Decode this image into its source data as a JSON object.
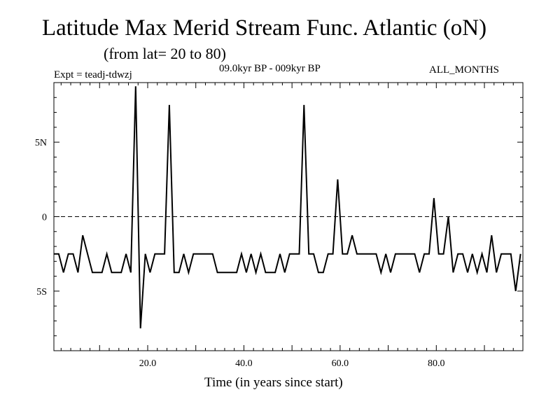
{
  "header": {
    "title": "Latitude Max Merid Stream Func. Atlantic (oN)",
    "subtitle": "(from lat= 20 to 80)",
    "experiment": "Expt = teadj-tdwzj",
    "period": "09.0kyr BP - 009kyr BP",
    "months": "ALL_MONTHS"
  },
  "chart_data": {
    "type": "line",
    "title": "Latitude Max Merid Stream Func. Atlantic (oN)",
    "xlabel": "Time (in years since start)",
    "ylabel": "",
    "xlim": [
      0.5,
      98
    ],
    "ylim": [
      -9,
      9
    ],
    "x_ticks": [
      {
        "value": 20,
        "label": "20.0"
      },
      {
        "value": 40,
        "label": "40.0"
      },
      {
        "value": 60,
        "label": "60.0"
      },
      {
        "value": 80,
        "label": "80.0"
      }
    ],
    "y_ticks": [
      {
        "value": 5,
        "label": "5N"
      },
      {
        "value": 0,
        "label": "0"
      },
      {
        "value": -5,
        "label": "5S"
      }
    ],
    "zero_line": {
      "value": 0,
      "style": "dashed"
    },
    "series": [
      {
        "name": "latitude_max",
        "x": [
          0.5,
          1.5,
          2.5,
          3.5,
          4.5,
          5.5,
          6.5,
          7.5,
          8.5,
          9.5,
          10.5,
          11.5,
          12.5,
          13.5,
          14.5,
          15.5,
          16.5,
          17.5,
          18.5,
          19.5,
          20.5,
          21.5,
          22.5,
          23.5,
          24.5,
          25.5,
          26.5,
          27.5,
          28.5,
          29.5,
          30.5,
          31.5,
          32.5,
          33.5,
          34.5,
          35.5,
          36.5,
          37.5,
          38.5,
          39.5,
          40.5,
          41.5,
          42.5,
          43.5,
          44.5,
          45.5,
          46.5,
          47.5,
          48.5,
          49.5,
          50.5,
          51.5,
          52.5,
          53.5,
          54.5,
          55.5,
          56.5,
          57.5,
          58.5,
          59.5,
          60.5,
          61.5,
          62.5,
          63.5,
          64.5,
          65.5,
          66.5,
          67.5,
          68.5,
          69.5,
          70.5,
          71.5,
          72.5,
          73.5,
          74.5,
          75.5,
          76.5,
          77.5,
          78.5,
          79.5,
          80.5,
          81.5,
          82.5,
          83.5,
          84.5,
          85.5,
          86.5,
          87.5,
          88.5,
          89.5,
          90.5,
          91.5,
          92.5,
          93.5,
          94.5,
          95.5,
          96.5,
          97.5
        ],
        "y": [
          -2.5,
          -2.5,
          -3.75,
          -2.5,
          -2.5,
          -3.75,
          -1.25,
          -2.5,
          -3.75,
          -3.75,
          -3.75,
          -2.5,
          -3.75,
          -3.75,
          -3.75,
          -2.5,
          -3.75,
          8.75,
          -7.5,
          -2.5,
          -3.75,
          -2.5,
          -2.5,
          -2.5,
          7.5,
          -3.75,
          -3.75,
          -2.5,
          -3.75,
          -2.5,
          -2.5,
          -2.5,
          -2.5,
          -2.5,
          -3.75,
          -3.75,
          -3.75,
          -3.75,
          -3.75,
          -2.5,
          -3.75,
          -2.5,
          -3.75,
          -2.5,
          -3.75,
          -3.75,
          -3.75,
          -2.5,
          -3.75,
          -2.5,
          -2.5,
          -2.5,
          7.5,
          -2.5,
          -2.5,
          -3.75,
          -3.75,
          -2.5,
          -2.5,
          2.5,
          -2.5,
          -2.5,
          -1.25,
          -2.5,
          -2.5,
          -2.5,
          -2.5,
          -2.5,
          -3.75,
          -2.5,
          -3.75,
          -2.5,
          -2.5,
          -2.5,
          -2.5,
          -2.5,
          -3.75,
          -2.5,
          -2.5,
          1.25,
          -2.5,
          -2.5,
          0,
          -3.75,
          -2.5,
          -2.5,
          -3.75,
          -2.5,
          -3.75,
          -2.5,
          -3.75,
          -1.25,
          -3.75,
          -2.5,
          -2.5,
          -2.5,
          -5,
          -2.5
        ]
      }
    ]
  }
}
